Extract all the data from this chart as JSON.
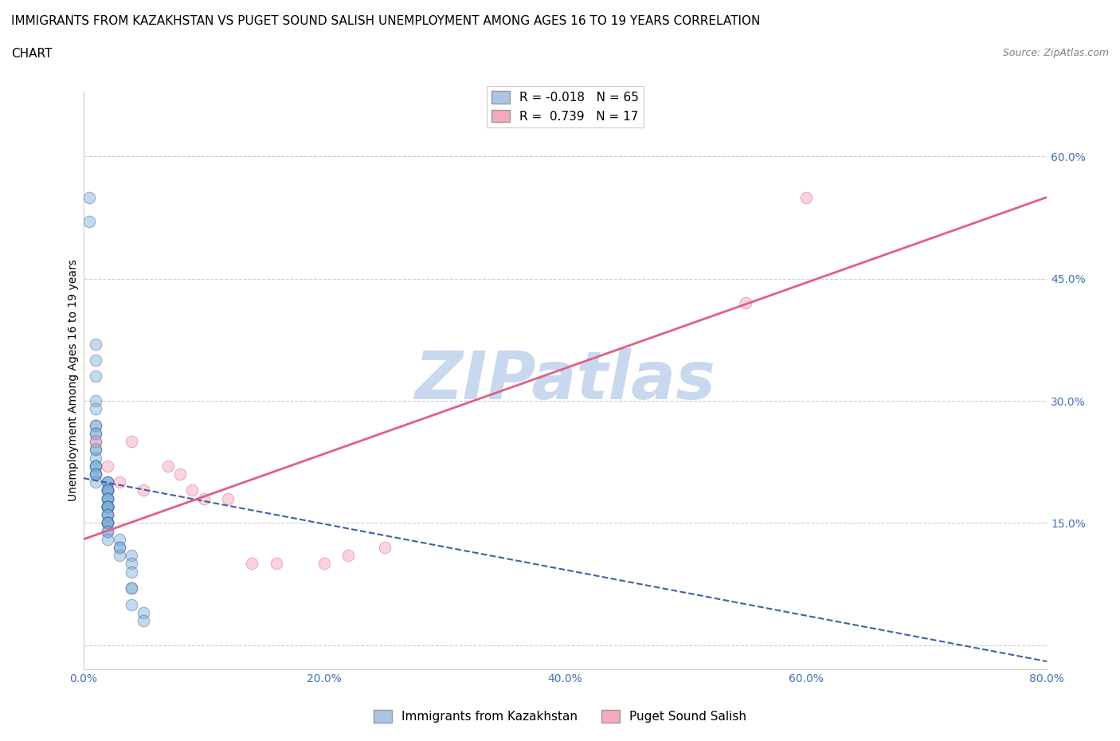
{
  "title_line1": "IMMIGRANTS FROM KAZAKHSTAN VS PUGET SOUND SALISH UNEMPLOYMENT AMONG AGES 16 TO 19 YEARS CORRELATION",
  "title_line2": "CHART",
  "source": "Source: ZipAtlas.com",
  "ylabel": "Unemployment Among Ages 16 to 19 years",
  "xlim": [
    0.0,
    0.8
  ],
  "ylim": [
    -0.03,
    0.68
  ],
  "xticks": [
    0.0,
    0.2,
    0.4,
    0.6,
    0.8
  ],
  "xtick_labels": [
    "0.0%",
    "20.0%",
    "40.0%",
    "60.0%",
    "80.0%"
  ],
  "yticks": [
    0.0,
    0.15,
    0.3,
    0.45,
    0.6
  ],
  "ytick_labels": [
    "",
    "15.0%",
    "30.0%",
    "45.0%",
    "60.0%"
  ],
  "legend_items": [
    {
      "label": "R = -0.018   N = 65",
      "color": "#aac4e8"
    },
    {
      "label": "R =  0.739   N = 17",
      "color": "#f4aabc"
    }
  ],
  "legend_bottom_labels": [
    "Immigrants from Kazakhstan",
    "Puget Sound Salish"
  ],
  "watermark": "ZIPatlas",
  "blue_scatter_x": [
    0.005,
    0.005,
    0.01,
    0.01,
    0.01,
    0.01,
    0.01,
    0.01,
    0.01,
    0.01,
    0.01,
    0.01,
    0.01,
    0.01,
    0.01,
    0.01,
    0.01,
    0.01,
    0.01,
    0.01,
    0.01,
    0.01,
    0.02,
    0.02,
    0.02,
    0.02,
    0.02,
    0.02,
    0.02,
    0.02,
    0.02,
    0.02,
    0.02,
    0.02,
    0.02,
    0.02,
    0.02,
    0.02,
    0.02,
    0.02,
    0.02,
    0.02,
    0.02,
    0.02,
    0.02,
    0.02,
    0.02,
    0.02,
    0.02,
    0.02,
    0.02,
    0.02,
    0.02,
    0.03,
    0.03,
    0.03,
    0.03,
    0.04,
    0.04,
    0.04,
    0.04,
    0.04,
    0.04,
    0.05,
    0.05
  ],
  "blue_scatter_y": [
    0.55,
    0.52,
    0.37,
    0.35,
    0.33,
    0.3,
    0.29,
    0.27,
    0.27,
    0.26,
    0.26,
    0.25,
    0.24,
    0.24,
    0.23,
    0.22,
    0.22,
    0.22,
    0.21,
    0.21,
    0.21,
    0.2,
    0.2,
    0.2,
    0.2,
    0.19,
    0.19,
    0.19,
    0.19,
    0.19,
    0.19,
    0.18,
    0.18,
    0.18,
    0.18,
    0.17,
    0.17,
    0.17,
    0.17,
    0.17,
    0.17,
    0.17,
    0.16,
    0.16,
    0.16,
    0.15,
    0.15,
    0.15,
    0.15,
    0.15,
    0.14,
    0.14,
    0.13,
    0.13,
    0.12,
    0.12,
    0.11,
    0.11,
    0.1,
    0.09,
    0.07,
    0.07,
    0.05,
    0.04,
    0.03
  ],
  "pink_scatter_x": [
    0.01,
    0.02,
    0.03,
    0.04,
    0.05,
    0.07,
    0.08,
    0.09,
    0.1,
    0.12,
    0.14,
    0.16,
    0.2,
    0.22,
    0.25,
    0.55,
    0.6
  ],
  "pink_scatter_y": [
    0.25,
    0.22,
    0.2,
    0.25,
    0.19,
    0.22,
    0.21,
    0.19,
    0.18,
    0.18,
    0.1,
    0.1,
    0.1,
    0.11,
    0.12,
    0.42,
    0.55
  ],
  "blue_line_x": [
    0.0,
    0.8
  ],
  "blue_line_y": [
    0.205,
    -0.02
  ],
  "pink_line_x": [
    0.0,
    0.8
  ],
  "pink_line_y": [
    0.13,
    0.55
  ],
  "blue_color": "#7bafd4",
  "pink_color": "#f0a0b8",
  "blue_legend_color": "#aac4e8",
  "pink_legend_color": "#f4aabc",
  "blue_line_color": "#4060a8",
  "pink_line_color": "#e06080",
  "grid_color": "#cccccc",
  "title_fontsize": 11,
  "axis_label_fontsize": 10,
  "tick_fontsize": 10,
  "watermark_color": "#c8d8ee",
  "watermark_fontsize": 60
}
